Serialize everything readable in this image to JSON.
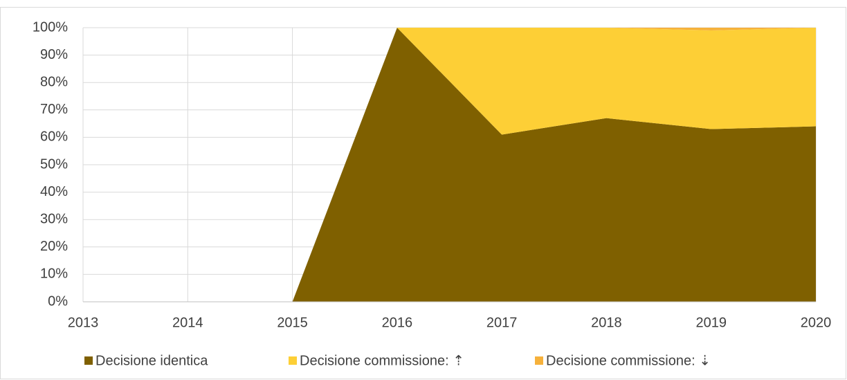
{
  "chart_data": {
    "type": "stacked_area",
    "categories": [
      "2013",
      "2014",
      "2015",
      "2016",
      "2017",
      "2018",
      "2019",
      "2020"
    ],
    "series": [
      {
        "name": "Decisione identica",
        "color": "#7f6000",
        "values": [
          null,
          null,
          0,
          100,
          61,
          67,
          63,
          64
        ]
      },
      {
        "name": "Decisione commissione: ⇡",
        "color": "#fdcf36",
        "values": [
          null,
          null,
          0,
          0,
          39,
          33,
          36,
          36
        ]
      },
      {
        "name": "Decisione commissione: ⇣",
        "color": "#f6b13b",
        "values": [
          null,
          null,
          0,
          0,
          0,
          0,
          1,
          0
        ]
      }
    ],
    "ylim": [
      0,
      100
    ],
    "yticks": [
      {
        "value": 0,
        "label": "0%"
      },
      {
        "value": 10,
        "label": "10%"
      },
      {
        "value": 20,
        "label": "20%"
      },
      {
        "value": 30,
        "label": "30%"
      },
      {
        "value": 40,
        "label": "40%"
      },
      {
        "value": 50,
        "label": "50%"
      },
      {
        "value": 60,
        "label": "60%"
      },
      {
        "value": 70,
        "label": "70%"
      },
      {
        "value": 80,
        "label": "80%"
      },
      {
        "value": 90,
        "label": "90%"
      },
      {
        "value": 100,
        "label": "100%"
      }
    ],
    "grid": true,
    "legend": "bottom"
  }
}
